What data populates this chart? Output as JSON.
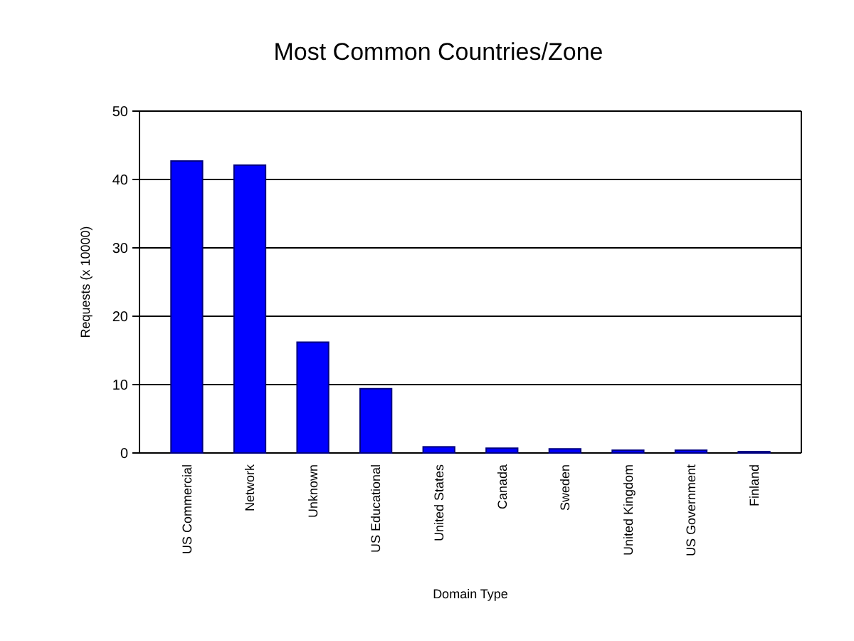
{
  "chart_data": {
    "type": "bar",
    "title": "Most Common Countries/Zone",
    "xlabel": "Domain Type",
    "ylabel": "Requests (x 10000)",
    "categories": [
      "US Commercial",
      "Network",
      "Unknown",
      "US Educational",
      "United States",
      "Canada",
      "Sweden",
      "United Kingdom",
      "US Government",
      "Finland"
    ],
    "values": [
      42.7,
      42.1,
      16.2,
      9.4,
      0.9,
      0.7,
      0.6,
      0.4,
      0.4,
      0.2
    ],
    "color": "#0000ff",
    "ylim": [
      0,
      50
    ],
    "yticks": [
      0,
      10,
      20,
      30,
      40,
      50
    ],
    "grid": "y"
  }
}
